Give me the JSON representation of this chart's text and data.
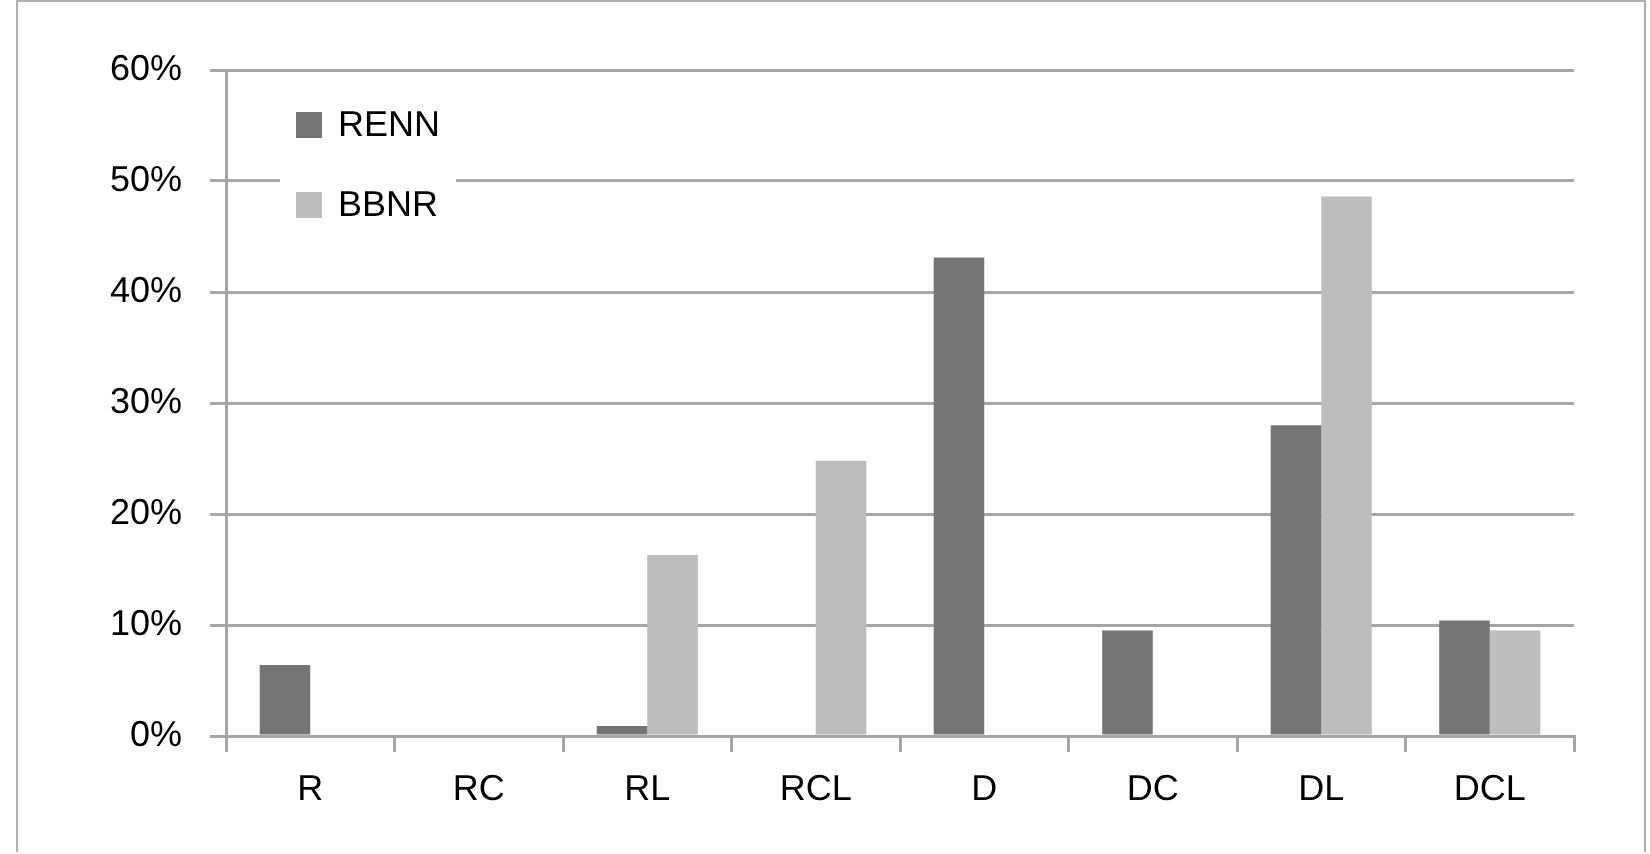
{
  "chart_data": {
    "type": "bar",
    "categories": [
      "R",
      "RC",
      "RL",
      "RCL",
      "D",
      "DC",
      "DL",
      "DCL"
    ],
    "series": [
      {
        "name": "RENN",
        "color": "#757575",
        "values": [
          6.4,
          0,
          0.9,
          0,
          43.1,
          9.5,
          28.0,
          10.4
        ]
      },
      {
        "name": "BBNR",
        "color": "#bdbdbd",
        "values": [
          0,
          0,
          16.3,
          24.8,
          0,
          0,
          48.6,
          9.5
        ]
      }
    ],
    "ylim": [
      0,
      60
    ],
    "yticks": [
      {
        "value": 0,
        "label": "0%"
      },
      {
        "value": 10,
        "label": "10%"
      },
      {
        "value": 20,
        "label": "20%"
      },
      {
        "value": 30,
        "label": "30%"
      },
      {
        "value": 40,
        "label": "40%"
      },
      {
        "value": 50,
        "label": "50%"
      },
      {
        "value": 60,
        "label": "60%"
      }
    ],
    "grid": "y",
    "legend": "top left"
  }
}
